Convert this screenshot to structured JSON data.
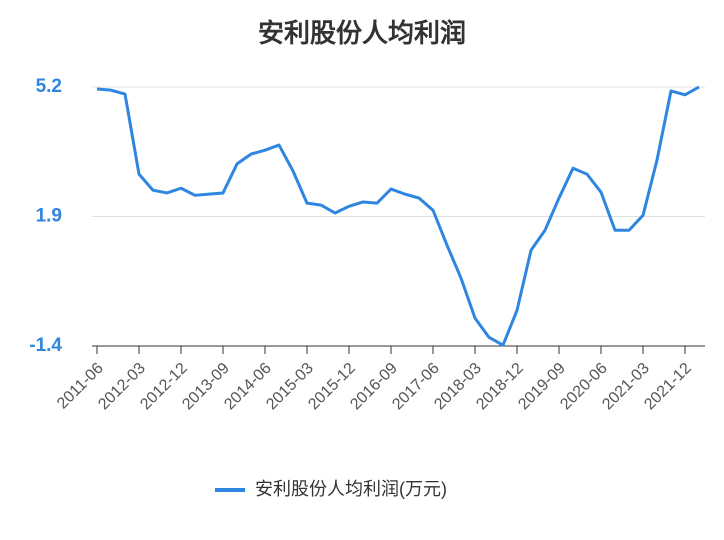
{
  "chart_data": {
    "type": "line",
    "title": "安利股份人均利润",
    "categories": [
      "2011-06",
      null,
      null,
      "2012-03",
      null,
      null,
      "2012-12",
      null,
      null,
      "2013-09",
      null,
      null,
      "2014-06",
      null,
      null,
      "2015-03",
      null,
      null,
      "2015-12",
      null,
      null,
      "2016-09",
      null,
      null,
      "2017-06",
      null,
      null,
      "2018-03",
      null,
      null,
      "2018-12",
      null,
      null,
      "2019-09",
      null,
      null,
      "2020-06",
      null,
      null,
      "2021-03",
      null,
      null,
      "2021-12",
      null
    ],
    "series": [
      {
        "name": "安利股份人均利润(万元)",
        "color": "#2f86e0",
        "values": [
          5.15,
          5.12,
          5.02,
          2.98,
          2.57,
          2.5,
          2.62,
          2.44,
          2.47,
          2.5,
          3.24,
          3.49,
          3.59,
          3.72,
          3.06,
          2.24,
          2.19,
          1.99,
          2.16,
          2.27,
          2.24,
          2.6,
          2.47,
          2.37,
          2.06,
          1.17,
          0.33,
          -0.69,
          -1.18,
          -1.38,
          -0.49,
          1.04,
          1.55,
          2.37,
          3.13,
          2.98,
          2.52,
          1.55,
          1.55,
          1.93,
          3.34,
          5.1,
          5.0,
          5.2
        ]
      }
    ],
    "ylim": [
      -1.4,
      5.2
    ],
    "yticks": [
      -1.4,
      1.9,
      5.2
    ],
    "grid": true,
    "legend": "bottom"
  }
}
